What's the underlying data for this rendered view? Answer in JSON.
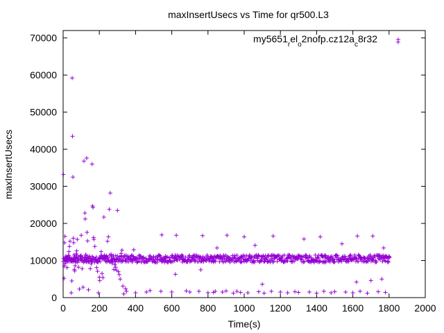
{
  "chart_data": {
    "type": "scatter",
    "title": "maxInsertUsecs vs Time for qr500.L3",
    "xlabel": "Time(s)",
    "ylabel": "maxInsertUsecs",
    "xlim": [
      0,
      2000
    ],
    "ylim": [
      0,
      72000
    ],
    "x_ticks": [
      "0",
      "200",
      "400",
      "600",
      "800",
      "1000",
      "1200",
      "1400",
      "1600",
      "1800",
      "2000"
    ],
    "y_ticks": [
      "0",
      "10000",
      "20000",
      "30000",
      "40000",
      "50000",
      "60000",
      "70000"
    ],
    "grid": false,
    "legend_position": "top-right",
    "marker": "+",
    "colors": {
      "series": "#9400d3",
      "axis": "#000000"
    },
    "series": [
      {
        "name_parts": [
          {
            "text": "my5651",
            "sub": false
          },
          {
            "text": "r",
            "sub": true
          },
          {
            "text": "el",
            "sub": false
          },
          {
            "text": "o",
            "sub": true
          },
          {
            "text": "2nofp.cz12a",
            "sub": false
          },
          {
            "text": "c",
            "sub": true
          },
          {
            "text": "8r32",
            "sub": false
          }
        ],
        "points": [
          [
            2,
            33200
          ],
          [
            5,
            5200
          ],
          [
            6,
            8500
          ],
          [
            8,
            14800
          ],
          [
            10,
            16500
          ],
          [
            12,
            9200
          ],
          [
            15,
            11200
          ],
          [
            18,
            10300
          ],
          [
            20,
            9800
          ],
          [
            22,
            8100
          ],
          [
            25,
            10500
          ],
          [
            28,
            11000
          ],
          [
            30,
            10200
          ],
          [
            32,
            12400
          ],
          [
            35,
            13800
          ],
          [
            38,
            15200
          ],
          [
            40,
            10400
          ],
          [
            42,
            9800
          ],
          [
            45,
            1300
          ],
          [
            48,
            4500
          ],
          [
            50,
            59200
          ],
          [
            52,
            43500
          ],
          [
            54,
            32500
          ],
          [
            56,
            16000
          ],
          [
            58,
            14800
          ],
          [
            60,
            11500
          ],
          [
            62,
            7600
          ],
          [
            64,
            7200
          ],
          [
            66,
            8600
          ],
          [
            68,
            10100
          ],
          [
            70,
            10700
          ],
          [
            72,
            11800
          ],
          [
            75,
            12600
          ],
          [
            78,
            15700
          ],
          [
            80,
            9500
          ],
          [
            85,
            8200
          ],
          [
            90,
            2300
          ],
          [
            95,
            10400
          ],
          [
            100,
            16800
          ],
          [
            105,
            7800
          ],
          [
            110,
            2800
          ],
          [
            115,
            36800
          ],
          [
            120,
            22800
          ],
          [
            122,
            21200
          ],
          [
            125,
            11600
          ],
          [
            128,
            10200
          ],
          [
            130,
            37600
          ],
          [
            132,
            17600
          ],
          [
            135,
            15300
          ],
          [
            138,
            10400
          ],
          [
            140,
            2100
          ],
          [
            145,
            9600
          ],
          [
            150,
            7800
          ],
          [
            155,
            9100
          ],
          [
            160,
            36000
          ],
          [
            162,
            24700
          ],
          [
            165,
            24300
          ],
          [
            168,
            16200
          ],
          [
            170,
            15700
          ],
          [
            175,
            13800
          ],
          [
            180,
            10200
          ],
          [
            185,
            8100
          ],
          [
            190,
            7100
          ],
          [
            195,
            1300
          ],
          [
            200,
            5500
          ],
          [
            202,
            4600
          ],
          [
            205,
            10800
          ],
          [
            210,
            12400
          ],
          [
            215,
            6500
          ],
          [
            220,
            5400
          ],
          [
            225,
            21700
          ],
          [
            230,
            10400
          ],
          [
            235,
            9800
          ],
          [
            240,
            11100
          ],
          [
            245,
            15200
          ],
          [
            250,
            16400
          ],
          [
            255,
            23800
          ],
          [
            260,
            28200
          ],
          [
            265,
            11700
          ],
          [
            270,
            9300
          ],
          [
            275,
            10200
          ],
          [
            280,
            7600
          ],
          [
            285,
            8900
          ],
          [
            290,
            8200
          ],
          [
            295,
            7400
          ],
          [
            300,
            23500
          ],
          [
            305,
            7000
          ],
          [
            310,
            6200
          ],
          [
            315,
            5000
          ],
          [
            320,
            11900
          ],
          [
            325,
            12800
          ],
          [
            330,
            3100
          ],
          [
            335,
            1000
          ],
          [
            340,
            11000
          ],
          [
            345,
            2400
          ],
          [
            350,
            1700
          ],
          [
            360,
            10600
          ],
          [
            380,
            11400
          ],
          [
            390,
            12900
          ],
          [
            400,
            1300
          ],
          [
            420,
            10400
          ],
          [
            460,
            1500
          ],
          [
            480,
            1900
          ],
          [
            520,
            11000
          ],
          [
            540,
            1700
          ],
          [
            545,
            16900
          ],
          [
            560,
            10600
          ],
          [
            600,
            1500
          ],
          [
            620,
            6300
          ],
          [
            625,
            16800
          ],
          [
            660,
            11200
          ],
          [
            680,
            1800
          ],
          [
            700,
            1500
          ],
          [
            750,
            1700
          ],
          [
            760,
            7500
          ],
          [
            770,
            16700
          ],
          [
            800,
            1300
          ],
          [
            820,
            10900
          ],
          [
            830,
            1400
          ],
          [
            840,
            1700
          ],
          [
            850,
            13400
          ],
          [
            880,
            1500
          ],
          [
            900,
            1800
          ],
          [
            905,
            16800
          ],
          [
            940,
            1200
          ],
          [
            960,
            1700
          ],
          [
            980,
            1400
          ],
          [
            1000,
            16400
          ],
          [
            1020,
            1300
          ],
          [
            1060,
            14100
          ],
          [
            1080,
            1600
          ],
          [
            1100,
            3600
          ],
          [
            1110,
            1200
          ],
          [
            1150,
            1700
          ],
          [
            1160,
            16600
          ],
          [
            1200,
            1500
          ],
          [
            1240,
            1300
          ],
          [
            1280,
            1600
          ],
          [
            1300,
            1400
          ],
          [
            1330,
            15800
          ],
          [
            1360,
            1500
          ],
          [
            1400,
            1200
          ],
          [
            1420,
            16400
          ],
          [
            1440,
            1700
          ],
          [
            1480,
            1300
          ],
          [
            1500,
            1600
          ],
          [
            1540,
            14500
          ],
          [
            1560,
            1500
          ],
          [
            1600,
            1300
          ],
          [
            1620,
            4200
          ],
          [
            1625,
            16600
          ],
          [
            1640,
            1700
          ],
          [
            1680,
            1200
          ],
          [
            1700,
            4600
          ],
          [
            1710,
            16600
          ],
          [
            1740,
            1600
          ],
          [
            1760,
            5000
          ],
          [
            1770,
            13400
          ],
          [
            1780,
            1400
          ],
          [
            1795,
            10600
          ],
          [
            1850,
            68900
          ]
        ],
        "band": {
          "x_from": 0,
          "x_to": 1800,
          "x_step": 5,
          "y_center": 10500,
          "y_spread": 1000
        }
      }
    ]
  }
}
